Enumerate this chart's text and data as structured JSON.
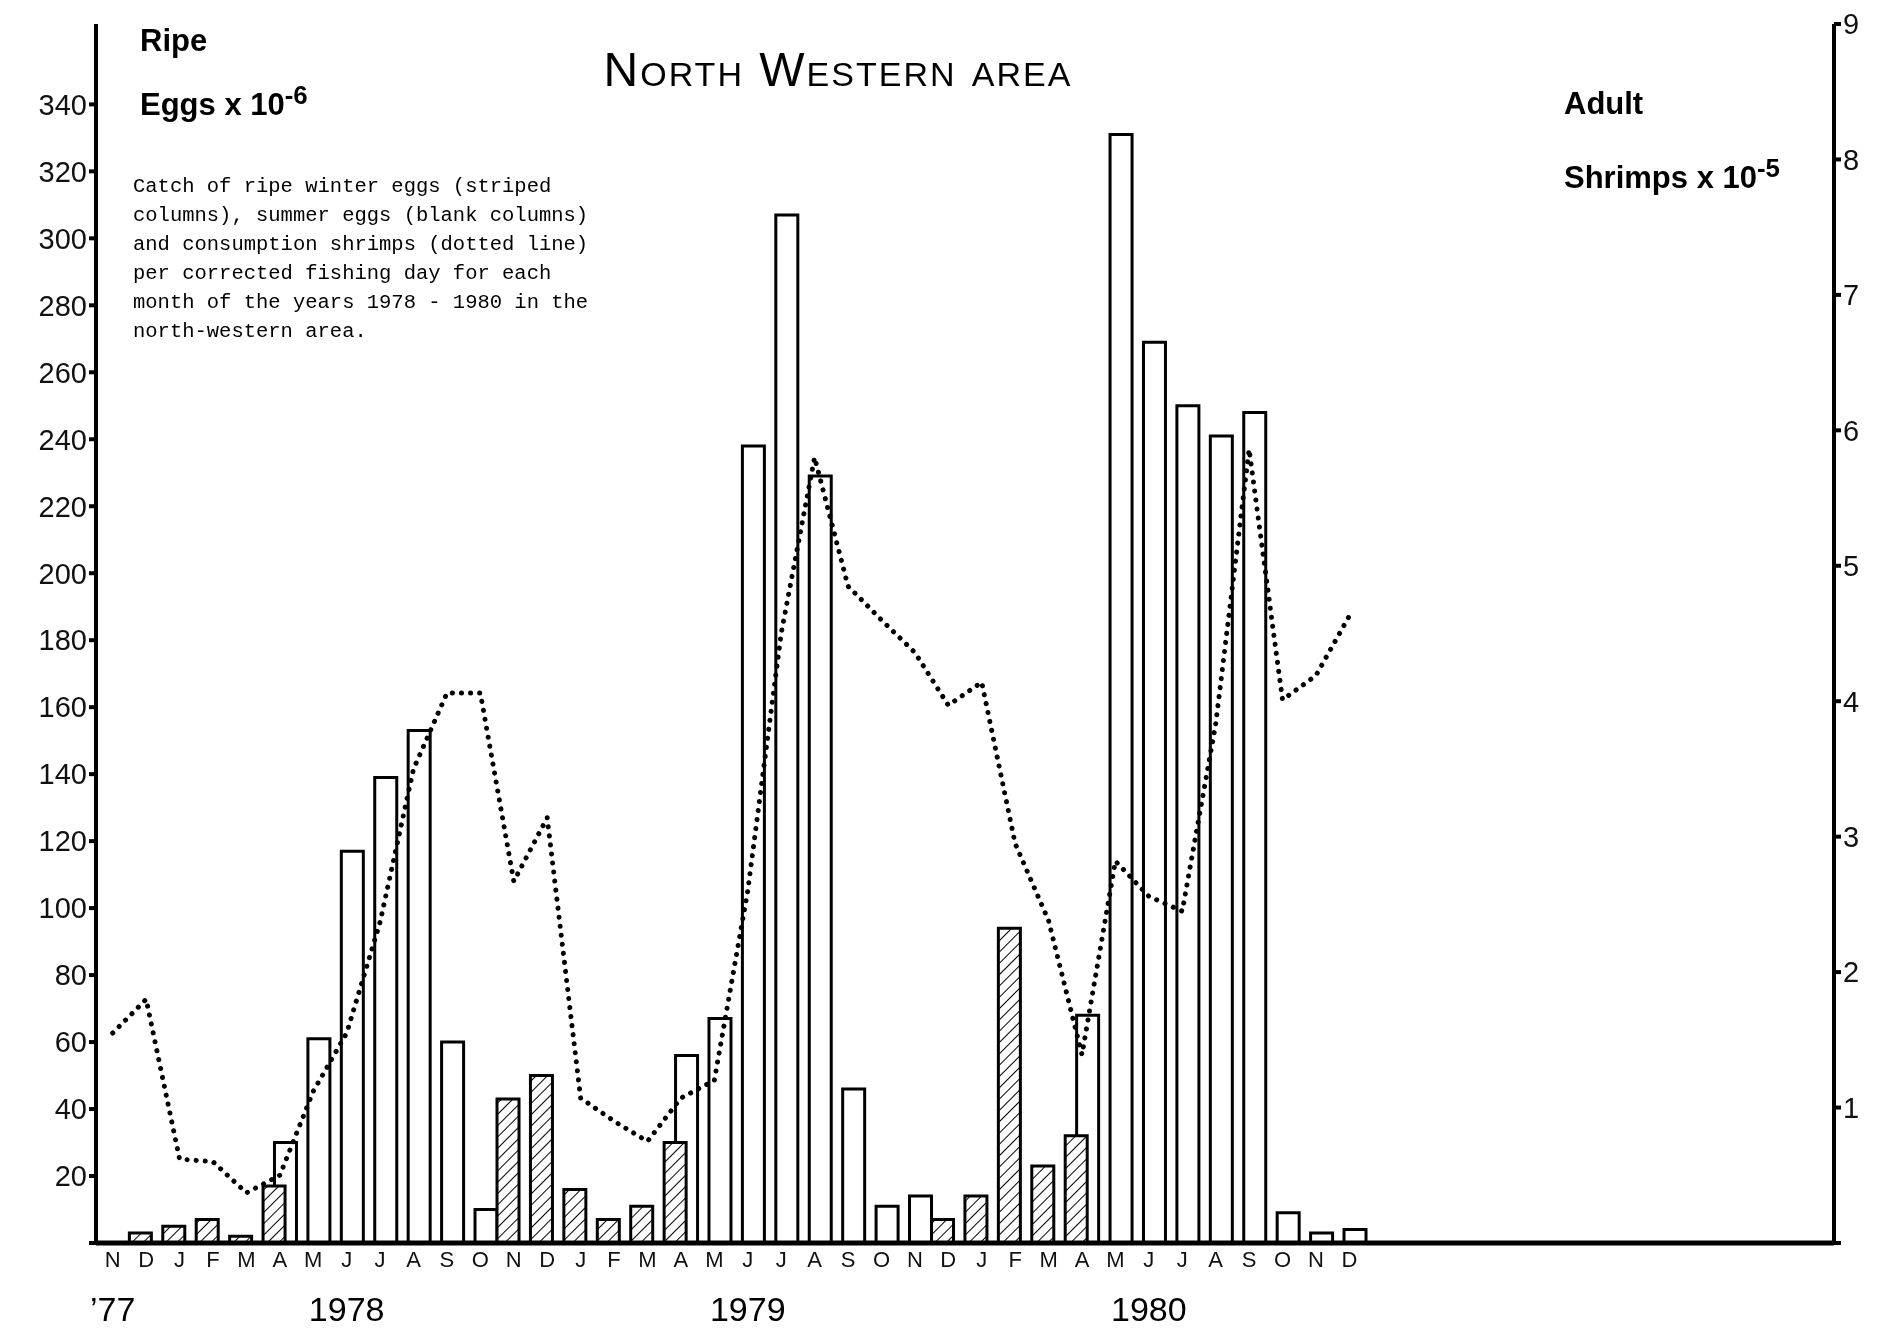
{
  "chart_data": {
    "type": "bar",
    "title": "North Western area",
    "ylabel": "Ripe\nEggs x 10$^{-6}$",
    "y2label": "Adult\nShrimps x 10$^{-5}$",
    "annotations": [
      "Catch of ripe winter eggs (striped\ncolumns), summer eggs (blank columns)\nand consumption shrimps (dotted line)\nper corrected fishing day for each\nmonth of the years 1978 - 1980 in the\nnorth-western area.",
      "’77",
      "1978",
      "1979",
      "1980"
    ],
    "categories": [
      "N",
      "D",
      "J",
      "F",
      "M",
      "A",
      "M",
      "J",
      "J",
      "A",
      "S",
      "O",
      "N",
      "D",
      "J",
      "F",
      "M",
      "A",
      "M",
      "J",
      "J",
      "A",
      "S",
      "O",
      "N",
      "D",
      "J",
      "F",
      "M",
      "A",
      "M",
      "J",
      "J",
      "A",
      "S",
      "O",
      "N",
      "D",
      null,
      null,
      null,
      null,
      null,
      null,
      null,
      null,
      null,
      null,
      null,
      null,
      null,
      null
    ],
    "series": [
      {
        "color": "#ffffff",
        "values": [
          null,
          null,
          null,
          null,
          null,
          30,
          61,
          117,
          139,
          153,
          60,
          10,
          null,
          null,
          null,
          null,
          null,
          56,
          67,
          238,
          307,
          229,
          46,
          11,
          14,
          null,
          null,
          null,
          null,
          68,
          331,
          269,
          250,
          241,
          248,
          9,
          3,
          4,
          null,
          null,
          null,
          null,
          null,
          null,
          null,
          null,
          null,
          null,
          null,
          null,
          null,
          null
        ]
      },
      {
        "color": "#000000",
        "values": [
          null,
          3,
          5,
          7,
          2,
          17,
          null,
          null,
          null,
          null,
          null,
          null,
          43,
          50,
          16,
          7,
          11,
          30,
          null,
          null,
          null,
          null,
          null,
          null,
          null,
          7,
          14,
          94,
          23,
          32,
          null,
          null,
          null,
          null,
          null,
          null,
          null,
          null,
          null,
          null,
          null,
          null,
          null,
          null,
          null,
          null,
          null,
          null,
          null,
          null,
          null,
          null
        ]
      },
      {
        "type": "line",
        "axis": "y2",
        "color": "#000000",
        "line_style": "dotted",
        "marker": "none",
        "values": [
          1.55,
          1.8,
          0.62,
          0.6,
          0.37,
          0.5,
          1.12,
          1.55,
          2.37,
          3.5,
          4.06,
          4.06,
          2.67,
          3.14,
          1.07,
          0.9,
          0.75,
          1.07,
          1.2,
          2.6,
          4.5,
          5.8,
          4.85,
          4.6,
          4.36,
          3.97,
          4.14,
          2.95,
          2.38,
          1.39,
          2.82,
          2.56,
          2.45,
          3.83,
          5.86,
          4.01,
          4.19,
          4.63,
          null,
          null,
          null,
          null,
          null,
          null,
          null,
          null,
          null,
          null,
          null,
          null,
          null,
          null
        ]
      }
    ],
    "ylim": [
      0,
      364
    ],
    "yticks": [
      {
        "value": 0,
        "label": null
      },
      20,
      40,
      60,
      80,
      100,
      120,
      140,
      160,
      180,
      200,
      220,
      240,
      260,
      280,
      300,
      320,
      340
    ],
    "y2lim": [
      0,
      9
    ],
    "y2ticks": [
      {
        "value": 0,
        "label": null
      },
      1,
      2,
      3,
      4,
      5,
      6,
      7,
      8,
      9
    ],
    "grid": false,
    "legend": false
  }
}
